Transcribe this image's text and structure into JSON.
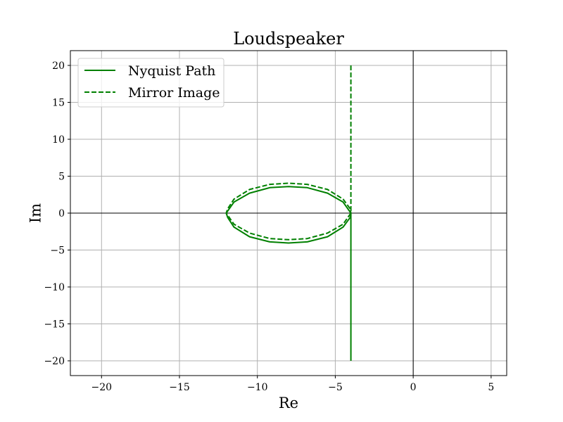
{
  "chart_data": {
    "type": "line",
    "title": "Loudspeaker",
    "xlabel": "Re",
    "ylabel": "Im",
    "xlim": [
      -22,
      6
    ],
    "ylim": [
      -22,
      22
    ],
    "x_ticks": [
      -20,
      -15,
      -10,
      -5,
      0,
      5
    ],
    "y_ticks": [
      -20,
      -15,
      -10,
      -5,
      0,
      5,
      10,
      15,
      20
    ],
    "x_tick_labels": [
      "−20",
      "−15",
      "−10",
      "−5",
      "0",
      "5"
    ],
    "y_tick_labels": [
      "−20",
      "−15",
      "−10",
      "−5",
      "0",
      "5",
      "10",
      "15",
      "20"
    ],
    "grid": true,
    "zero_lines": true,
    "legend_position": "top-left",
    "color": "#008000",
    "series": [
      {
        "name": "Nyquist Path",
        "style": "solid",
        "points": [
          [
            -4,
            -20
          ],
          [
            -4,
            -15
          ],
          [
            -4,
            -10
          ],
          [
            -4,
            -5
          ],
          [
            -4,
            -2
          ],
          [
            -4,
            0
          ],
          [
            -4.5,
            1.5
          ],
          [
            -5.5,
            2.7
          ],
          [
            -6.8,
            3.45
          ],
          [
            -8,
            3.6
          ],
          [
            -9.2,
            3.45
          ],
          [
            -10.5,
            2.7
          ],
          [
            -11.5,
            1.5
          ],
          [
            -11.9,
            0.3
          ],
          [
            -12,
            0
          ],
          [
            -11.9,
            -0.6
          ],
          [
            -11.5,
            -1.9
          ],
          [
            -10.5,
            -3.2
          ],
          [
            -9.2,
            -3.9
          ],
          [
            -8,
            -4.05
          ],
          [
            -6.8,
            -3.9
          ],
          [
            -5.5,
            -3.2
          ],
          [
            -4.5,
            -1.9
          ],
          [
            -4.05,
            -0.6
          ],
          [
            -4,
            0
          ]
        ]
      },
      {
        "name": "Mirror Image",
        "style": "dashed",
        "points": [
          [
            -4,
            20
          ],
          [
            -4,
            15
          ],
          [
            -4,
            10
          ],
          [
            -4,
            5
          ],
          [
            -4,
            2
          ],
          [
            -4,
            0
          ],
          [
            -4.5,
            -1.5
          ],
          [
            -5.5,
            -2.7
          ],
          [
            -6.8,
            -3.45
          ],
          [
            -8,
            -3.6
          ],
          [
            -9.2,
            -3.45
          ],
          [
            -10.5,
            -2.7
          ],
          [
            -11.5,
            -1.5
          ],
          [
            -11.9,
            -0.3
          ],
          [
            -12,
            0
          ],
          [
            -11.9,
            0.6
          ],
          [
            -11.5,
            1.9
          ],
          [
            -10.5,
            3.2
          ],
          [
            -9.2,
            3.9
          ],
          [
            -8,
            4.05
          ],
          [
            -6.8,
            3.9
          ],
          [
            -5.5,
            3.2
          ],
          [
            -4.5,
            1.9
          ],
          [
            -4.05,
            0.6
          ],
          [
            -4,
            0
          ]
        ]
      }
    ]
  }
}
